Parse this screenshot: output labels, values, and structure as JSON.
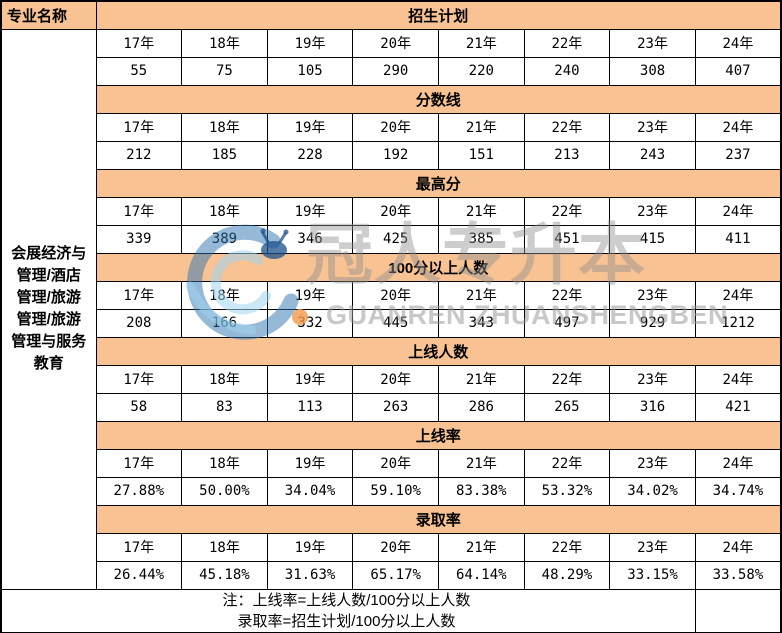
{
  "left_header": "专业名称",
  "program_name": "会展经济与\n管理/酒店\n管理/旅游\n管理/旅游\n管理与服务\n教育",
  "years": [
    "17年",
    "18年",
    "19年",
    "20年",
    "21年",
    "22年",
    "23年",
    "24年"
  ],
  "sections": [
    {
      "title": "招生计划",
      "values": [
        "55",
        "75",
        "105",
        "290",
        "220",
        "240",
        "308",
        "407"
      ]
    },
    {
      "title": "分数线",
      "values": [
        "212",
        "185",
        "228",
        "192",
        "151",
        "213",
        "243",
        "237"
      ]
    },
    {
      "title": "最高分",
      "values": [
        "339",
        "389",
        "346",
        "425",
        "385",
        "451",
        "415",
        "411"
      ]
    },
    {
      "title": "100分以上人数",
      "values": [
        "208",
        "166",
        "332",
        "445",
        "343",
        "497",
        "929",
        "1212"
      ]
    },
    {
      "title": "上线人数",
      "values": [
        "58",
        "83",
        "113",
        "263",
        "286",
        "265",
        "316",
        "421"
      ]
    },
    {
      "title": "上线率",
      "values": [
        "27.88%",
        "50.00%",
        "34.04%",
        "59.10%",
        "83.38%",
        "53.32%",
        "34.02%",
        "34.74%"
      ]
    },
    {
      "title": "录取率",
      "values": [
        "26.44%",
        "45.18%",
        "31.63%",
        "65.17%",
        "64.14%",
        "48.29%",
        "33.15%",
        "33.58%"
      ]
    }
  ],
  "notes": {
    "line1": "注：上线率=上线人数/100分以上人数",
    "line2": "录取率=招生计划/100分以上人数"
  },
  "watermark": {
    "cn": "冠人专升本",
    "en": "GUANREN ZHUANSHENGBEN"
  },
  "colors": {
    "header_bg": "#F8C292",
    "border": "#000000",
    "watermark_gray": "#919191",
    "logo_blue": "#2D73B2",
    "logo_light_blue": "#A0D6F0",
    "logo_orange": "#F2994A"
  }
}
